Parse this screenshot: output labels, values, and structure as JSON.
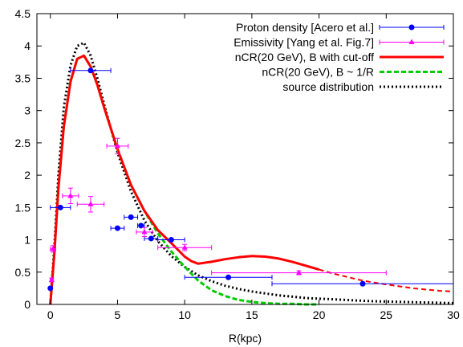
{
  "chart_data": {
    "type": "scatter",
    "title": "",
    "xlabel": "R(kpc)",
    "ylabel": "",
    "xlim": [
      -1,
      30
    ],
    "ylim": [
      0,
      4.5
    ],
    "xticks": [
      0,
      5,
      10,
      15,
      20,
      25,
      30
    ],
    "yticks": [
      0,
      0.5,
      1,
      1.5,
      2,
      2.5,
      3,
      3.5,
      4,
      4.5
    ],
    "xtick_labels": [
      "0",
      "5",
      "10",
      "15",
      "20",
      "25",
      "30"
    ],
    "ytick_labels": [
      "0",
      "0.5",
      "1",
      "1.5",
      "2",
      "2.5",
      "3",
      "3.5",
      "4",
      "4.5"
    ],
    "grid": false,
    "legend_position": "top-right",
    "series": [
      {
        "name": "Proton density [Acero et al.]",
        "kind": "points",
        "marker": "circle",
        "color": "#0000ff",
        "points": [
          {
            "x": 0.0,
            "y": 0.25,
            "xerr": 0.0
          },
          {
            "x": 0.75,
            "y": 1.5,
            "xerr": 0.75
          },
          {
            "x": 3.0,
            "y": 3.62,
            "xerr": 1.5
          },
          {
            "x": 5.0,
            "y": 1.18,
            "xerr": 0.5
          },
          {
            "x": 6.0,
            "y": 1.35,
            "xerr": 0.5
          },
          {
            "x": 6.75,
            "y": 1.22,
            "xerr": 0.25
          },
          {
            "x": 7.5,
            "y": 1.02,
            "xerr": 0.5
          },
          {
            "x": 9.0,
            "y": 1.0,
            "xerr": 1.0
          },
          {
            "x": 13.25,
            "y": 0.42,
            "xerr": 3.25
          },
          {
            "x": 23.25,
            "y": 0.32,
            "xerr": 6.75
          }
        ]
      },
      {
        "name": "Emissivity [Yang et al. Fig.7]",
        "kind": "points",
        "marker": "triangle",
        "color": "#ff00ff",
        "points": [
          {
            "x": 0.1,
            "y": 0.38,
            "xerr": 0.1,
            "yerr": 0.03
          },
          {
            "x": 0.2,
            "y": 0.86,
            "xerr": 0.2,
            "yerr": 0.05
          },
          {
            "x": 1.5,
            "y": 1.68,
            "xerr": 0.6,
            "yerr": 0.12
          },
          {
            "x": 3.0,
            "y": 1.55,
            "xerr": 1.0,
            "yerr": 0.12
          },
          {
            "x": 5.0,
            "y": 2.45,
            "xerr": 0.8,
            "yerr": 0.12
          },
          {
            "x": 7.0,
            "y": 1.12,
            "xerr": 0.6,
            "yerr": 0.07
          },
          {
            "x": 10.0,
            "y": 0.88,
            "xerr": 2.0,
            "yerr": 0.05
          },
          {
            "x": 18.5,
            "y": 0.49,
            "xerr": 6.5,
            "yerr": 0.03
          }
        ]
      },
      {
        "name": "nCR(20 GeV), B with cut-off",
        "kind": "line",
        "style": "solid-then-dashed",
        "color": "#ff0000",
        "dash_from_x": 20,
        "x": [
          0,
          0.3,
          0.6,
          1,
          1.5,
          2,
          2.5,
          3,
          3.5,
          4,
          5,
          6,
          7,
          8,
          9,
          10,
          10.5,
          11,
          12,
          13,
          14,
          15,
          16,
          17,
          18,
          19,
          20,
          21,
          22,
          23,
          24,
          25,
          26,
          27,
          28,
          29,
          30
        ],
        "y": [
          0.0,
          0.8,
          1.8,
          2.75,
          3.45,
          3.8,
          3.85,
          3.68,
          3.4,
          3.05,
          2.4,
          1.85,
          1.45,
          1.15,
          0.95,
          0.74,
          0.67,
          0.63,
          0.66,
          0.7,
          0.73,
          0.75,
          0.74,
          0.71,
          0.66,
          0.6,
          0.54,
          0.48,
          0.43,
          0.38,
          0.34,
          0.31,
          0.28,
          0.25,
          0.23,
          0.21,
          0.2
        ]
      },
      {
        "name": "nCR(20 GeV), B ~ 1/R",
        "kind": "line",
        "style": "dashed",
        "color": "#00cc00",
        "x": [
          0,
          0.3,
          0.6,
          1,
          1.5,
          2,
          2.5,
          3,
          3.5,
          4,
          5,
          6,
          7,
          8,
          9,
          10,
          11,
          12,
          13,
          14,
          15,
          16,
          17,
          18,
          19,
          20
        ],
        "y": [
          0.0,
          0.8,
          1.8,
          2.75,
          3.45,
          3.8,
          3.85,
          3.68,
          3.4,
          3.05,
          2.4,
          1.85,
          1.45,
          1.1,
          0.82,
          0.58,
          0.37,
          0.22,
          0.13,
          0.07,
          0.04,
          0.02,
          0.01,
          0.01,
          0.0,
          0.0
        ]
      },
      {
        "name": "source distribution",
        "kind": "line",
        "style": "dotted",
        "color": "#000000",
        "x": [
          0,
          0.3,
          0.6,
          1,
          1.5,
          2,
          2.5,
          3,
          3.5,
          4,
          5,
          6,
          7,
          8,
          9,
          10,
          11,
          12,
          13,
          14,
          15,
          16,
          17,
          18,
          19,
          20,
          22,
          24,
          26,
          28,
          30
        ],
        "y": [
          0.0,
          0.9,
          2.0,
          3.05,
          3.7,
          4.0,
          4.05,
          3.85,
          3.5,
          3.1,
          2.35,
          1.75,
          1.3,
          0.98,
          0.75,
          0.58,
          0.45,
          0.36,
          0.29,
          0.24,
          0.2,
          0.17,
          0.14,
          0.12,
          0.1,
          0.09,
          0.07,
          0.05,
          0.04,
          0.03,
          0.02
        ]
      }
    ]
  }
}
